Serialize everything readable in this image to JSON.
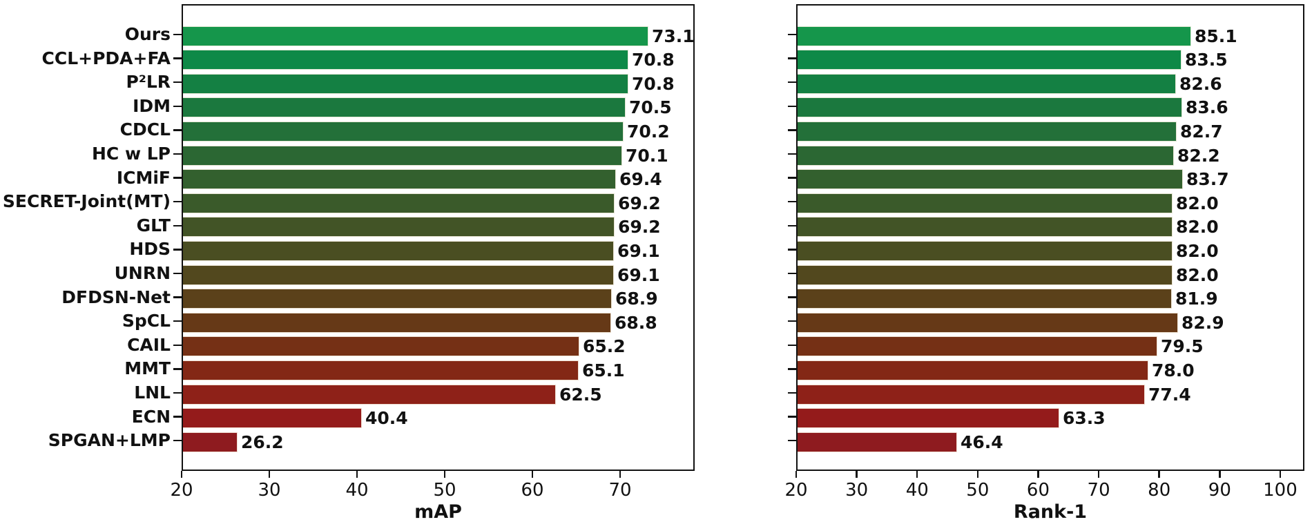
{
  "chart_data": [
    {
      "type": "bar",
      "orientation": "horizontal",
      "xlabel": "mAP",
      "categories": [
        "Ours",
        "CCL+PDA+FA",
        "P²LR",
        "IDM",
        "CDCL",
        "HC w LP",
        "ICMiF",
        "SECRET-Joint(MT)",
        "GLT",
        "HDS",
        "UNRN",
        "DFDSN-Net",
        "SpCL",
        "CAIL",
        "MMT",
        "LNL",
        "ECN",
        "SPGAN+LMP"
      ],
      "values": [
        73.1,
        70.8,
        70.8,
        70.5,
        70.2,
        70.1,
        69.4,
        69.2,
        69.2,
        69.1,
        69.1,
        68.9,
        68.8,
        65.2,
        65.1,
        62.5,
        40.4,
        26.2
      ],
      "xlim": [
        20,
        78.5
      ],
      "xticks": [
        20,
        30,
        40,
        50,
        60,
        70
      ],
      "show_category_labels": true,
      "grid": false,
      "legend": "none"
    },
    {
      "type": "bar",
      "orientation": "horizontal",
      "xlabel": "Rank-1",
      "categories": [
        "Ours",
        "CCL+PDA+FA",
        "P²LR",
        "IDM",
        "CDCL",
        "HC w LP",
        "ICMiF",
        "SECRET-Joint(MT)",
        "GLT",
        "HDS",
        "UNRN",
        "DFDSN-Net",
        "SpCL",
        "CAIL",
        "MMT",
        "LNL",
        "ECN",
        "SPGAN+LMP"
      ],
      "values": [
        85.1,
        83.5,
        82.6,
        83.6,
        82.7,
        82.2,
        83.7,
        82.0,
        82.0,
        82.0,
        82.0,
        81.9,
        82.9,
        79.5,
        78.0,
        77.4,
        63.3,
        46.4
      ],
      "xlim": [
        20,
        104
      ],
      "xticks": [
        20,
        30,
        40,
        50,
        60,
        70,
        80,
        90,
        100
      ],
      "show_category_labels": false,
      "grid": false,
      "legend": "none"
    }
  ],
  "bar_colors": [
    "#15964b",
    "#0e8947",
    "#148043",
    "#1b783e",
    "#237039",
    "#2b6733",
    "#33602e",
    "#3a5a2a",
    "#425426",
    "#4a4e22",
    "#52481e",
    "#5b411a",
    "#663917",
    "#753015",
    "#832815",
    "#8e2118",
    "#941b1b",
    "#8e1b1f"
  ],
  "value_label_format": "one_decimal",
  "text_color": "#111111"
}
